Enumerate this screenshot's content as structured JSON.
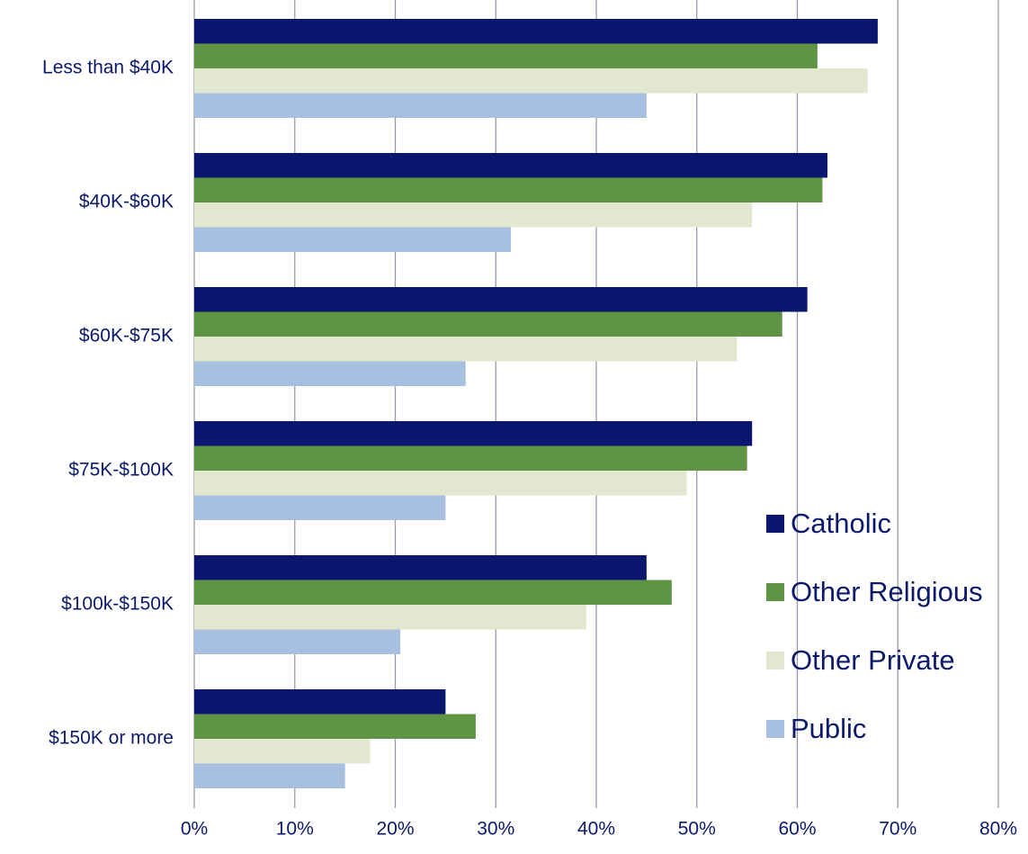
{
  "chart_data": {
    "type": "bar",
    "orientation": "horizontal",
    "categories": [
      "Less than $40K",
      "$40K-$60K",
      "$60K-$75K",
      "$75K-$100K",
      "$100k-$150K",
      "$150K or more"
    ],
    "series": [
      {
        "name": "Catholic",
        "color": "#0b176e",
        "values": [
          68,
          63,
          61,
          55.5,
          45,
          25
        ]
      },
      {
        "name": "Other Religious",
        "color": "#5e9444",
        "values": [
          62,
          62.5,
          58.5,
          55,
          47.5,
          28
        ]
      },
      {
        "name": "Other Private",
        "color": "#e2e8cf",
        "values": [
          67,
          55.5,
          54,
          49,
          39,
          17.5
        ]
      },
      {
        "name": "Public",
        "color": "#a7c0e0",
        "values": [
          45,
          31.5,
          27,
          25,
          20.5,
          15
        ]
      }
    ],
    "xlim": [
      0,
      80
    ],
    "xticks": [
      {
        "value": 0,
        "label": "0%"
      },
      {
        "value": 10,
        "label": "10%"
      },
      {
        "value": 20,
        "label": "20%"
      },
      {
        "value": 30,
        "label": "30%"
      },
      {
        "value": 40,
        "label": "40%"
      },
      {
        "value": 50,
        "label": "50%"
      },
      {
        "value": 60,
        "label": "60%"
      },
      {
        "value": 70,
        "label": "70%"
      },
      {
        "value": 80,
        "label": "80%"
      }
    ],
    "grid": true,
    "legend": "lower right"
  }
}
